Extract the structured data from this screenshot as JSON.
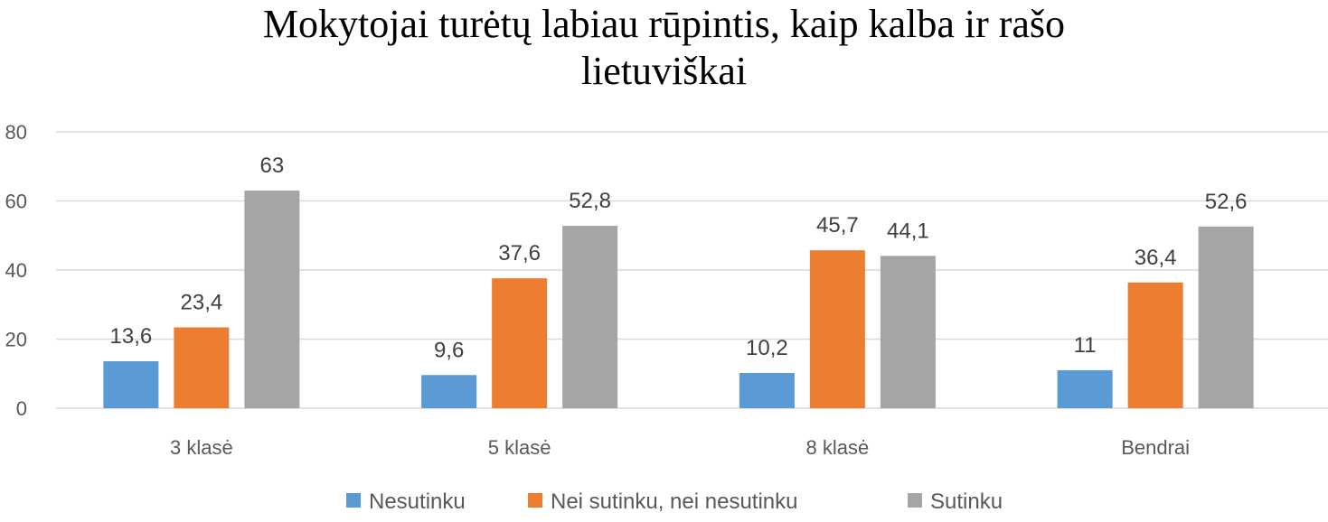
{
  "chart_data": {
    "type": "bar",
    "title_lines": [
      "Mokytojai turėtų labiau rūpintis, kaip kalba ir rašo",
      "lietuviškai"
    ],
    "categories": [
      "3 klasė",
      "5 klasė",
      "8 klasė",
      "Bendrai"
    ],
    "series": [
      {
        "name": "Nesutinku",
        "color": "#5B9BD5",
        "values": [
          13.6,
          9.6,
          10.2,
          11
        ],
        "labels": [
          "13,6",
          "9,6",
          "10,2",
          "11"
        ]
      },
      {
        "name": "Nei sutinku, nei nesutinku",
        "color": "#ED7D31",
        "values": [
          23.4,
          37.6,
          45.7,
          36.4
        ],
        "labels": [
          "23,4",
          "37,6",
          "45,7",
          "36,4"
        ]
      },
      {
        "name": "Sutinku",
        "color": "#A5A5A5",
        "values": [
          63,
          52.8,
          44.1,
          52.6
        ],
        "labels": [
          "63",
          "52,8",
          "44,1",
          "52,6"
        ]
      }
    ],
    "yticks": [
      "0",
      "20",
      "40",
      "60",
      "80"
    ],
    "ylim": [
      0,
      80
    ],
    "grid": true,
    "legend_position": "bottom"
  }
}
